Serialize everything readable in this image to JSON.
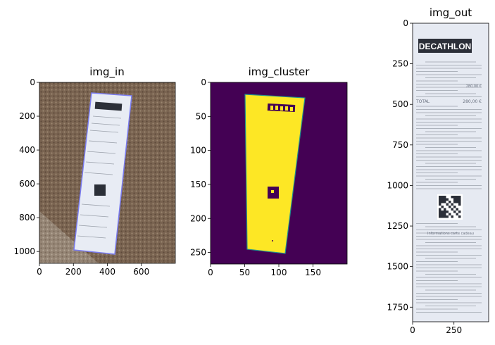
{
  "figure": {
    "panels": [
      {
        "title": "img_in",
        "xticks": [
          "0",
          "200",
          "400",
          "600"
        ],
        "yticks": [
          "0",
          "200",
          "400",
          "600",
          "800",
          "1000"
        ]
      },
      {
        "title": "img_cluster",
        "xticks": [
          "0",
          "50",
          "100",
          "150"
        ],
        "yticks": [
          "0",
          "50",
          "100",
          "150",
          "200",
          "250"
        ]
      },
      {
        "title": "img_out",
        "xticks": [
          "0",
          "250"
        ],
        "yticks": [
          "0",
          "250",
          "500",
          "750",
          "1000",
          "1250",
          "1500",
          "1750"
        ]
      }
    ],
    "receipt": {
      "brand": "DECATHLON",
      "total_label": "TOTAL",
      "total_value": "280,00 €",
      "subtotal_value": "280,00 €",
      "info_title": "Informations carte cadeau"
    },
    "colors": {
      "cluster_bg": "#440154",
      "cluster_fg": "#fde725",
      "cluster_edge": "#21918c",
      "carpet": "#7a6451",
      "receipt": "#e8ecf4",
      "polygon": "#7a7cf2"
    }
  },
  "chart_data": [
    {
      "type": "image",
      "title": "img_in",
      "xlim": [
        0,
        800
      ],
      "ylim": [
        1070,
        0
      ],
      "xticks": [
        0,
        200,
        400,
        600
      ],
      "yticks": [
        0,
        200,
        400,
        600,
        800,
        1000
      ]
    },
    {
      "type": "image",
      "title": "img_cluster",
      "xlim": [
        0,
        200
      ],
      "ylim": [
        267,
        0
      ],
      "xticks": [
        0,
        50,
        100,
        150
      ],
      "yticks": [
        0,
        50,
        100,
        150,
        200,
        250
      ]
    },
    {
      "type": "image",
      "title": "img_out",
      "xlim": [
        0,
        460
      ],
      "ylim": [
        1840,
        0
      ],
      "xticks": [
        0,
        250
      ],
      "yticks": [
        0,
        250,
        500,
        750,
        1000,
        1250,
        1500,
        1750
      ]
    }
  ]
}
